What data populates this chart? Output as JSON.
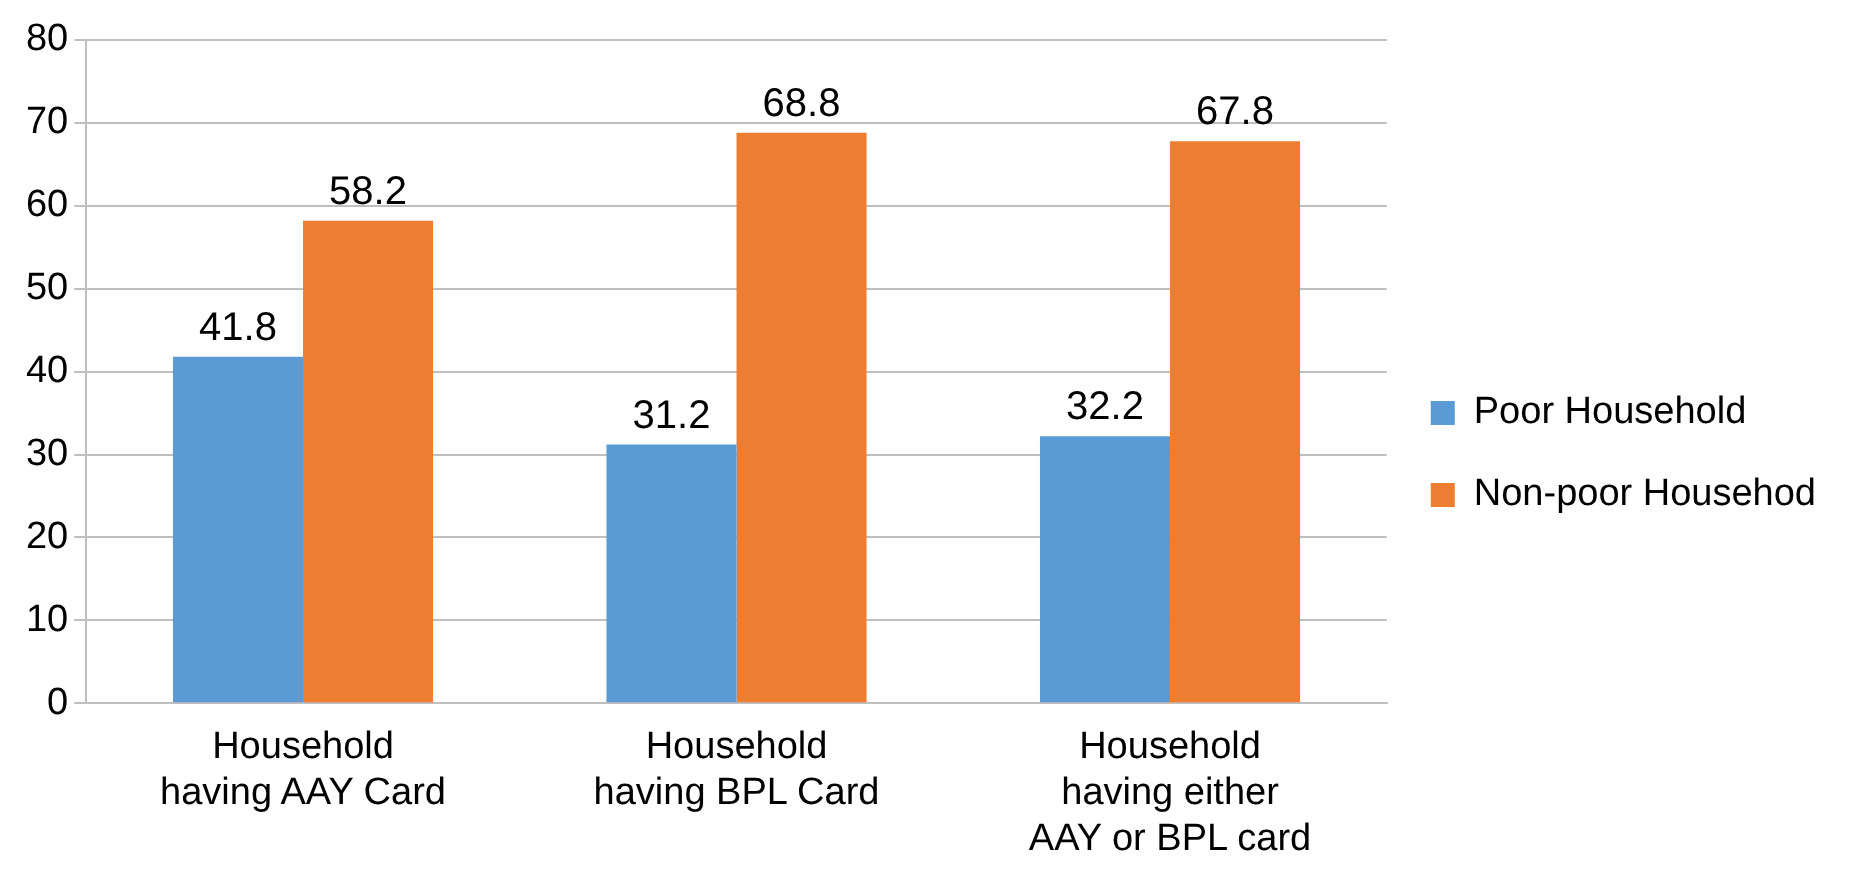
{
  "chart_data": {
    "type": "bar",
    "categories": [
      "Household having AAY Card",
      "Household having BPL Card",
      "Household having either AAY or BPL card"
    ],
    "series": [
      {
        "name": "Poor Household",
        "color": "#5b9bd5",
        "values": [
          41.8,
          31.2,
          32.2
        ]
      },
      {
        "name": "Non-poor Househod",
        "color": "#ed7d31",
        "values": [
          58.2,
          68.8,
          67.8
        ]
      }
    ],
    "ylim": [
      0,
      80
    ],
    "yticks": [
      0,
      10,
      20,
      30,
      40,
      50,
      60,
      70,
      80
    ],
    "grid": "y",
    "legend": "right",
    "data_labels": true
  }
}
